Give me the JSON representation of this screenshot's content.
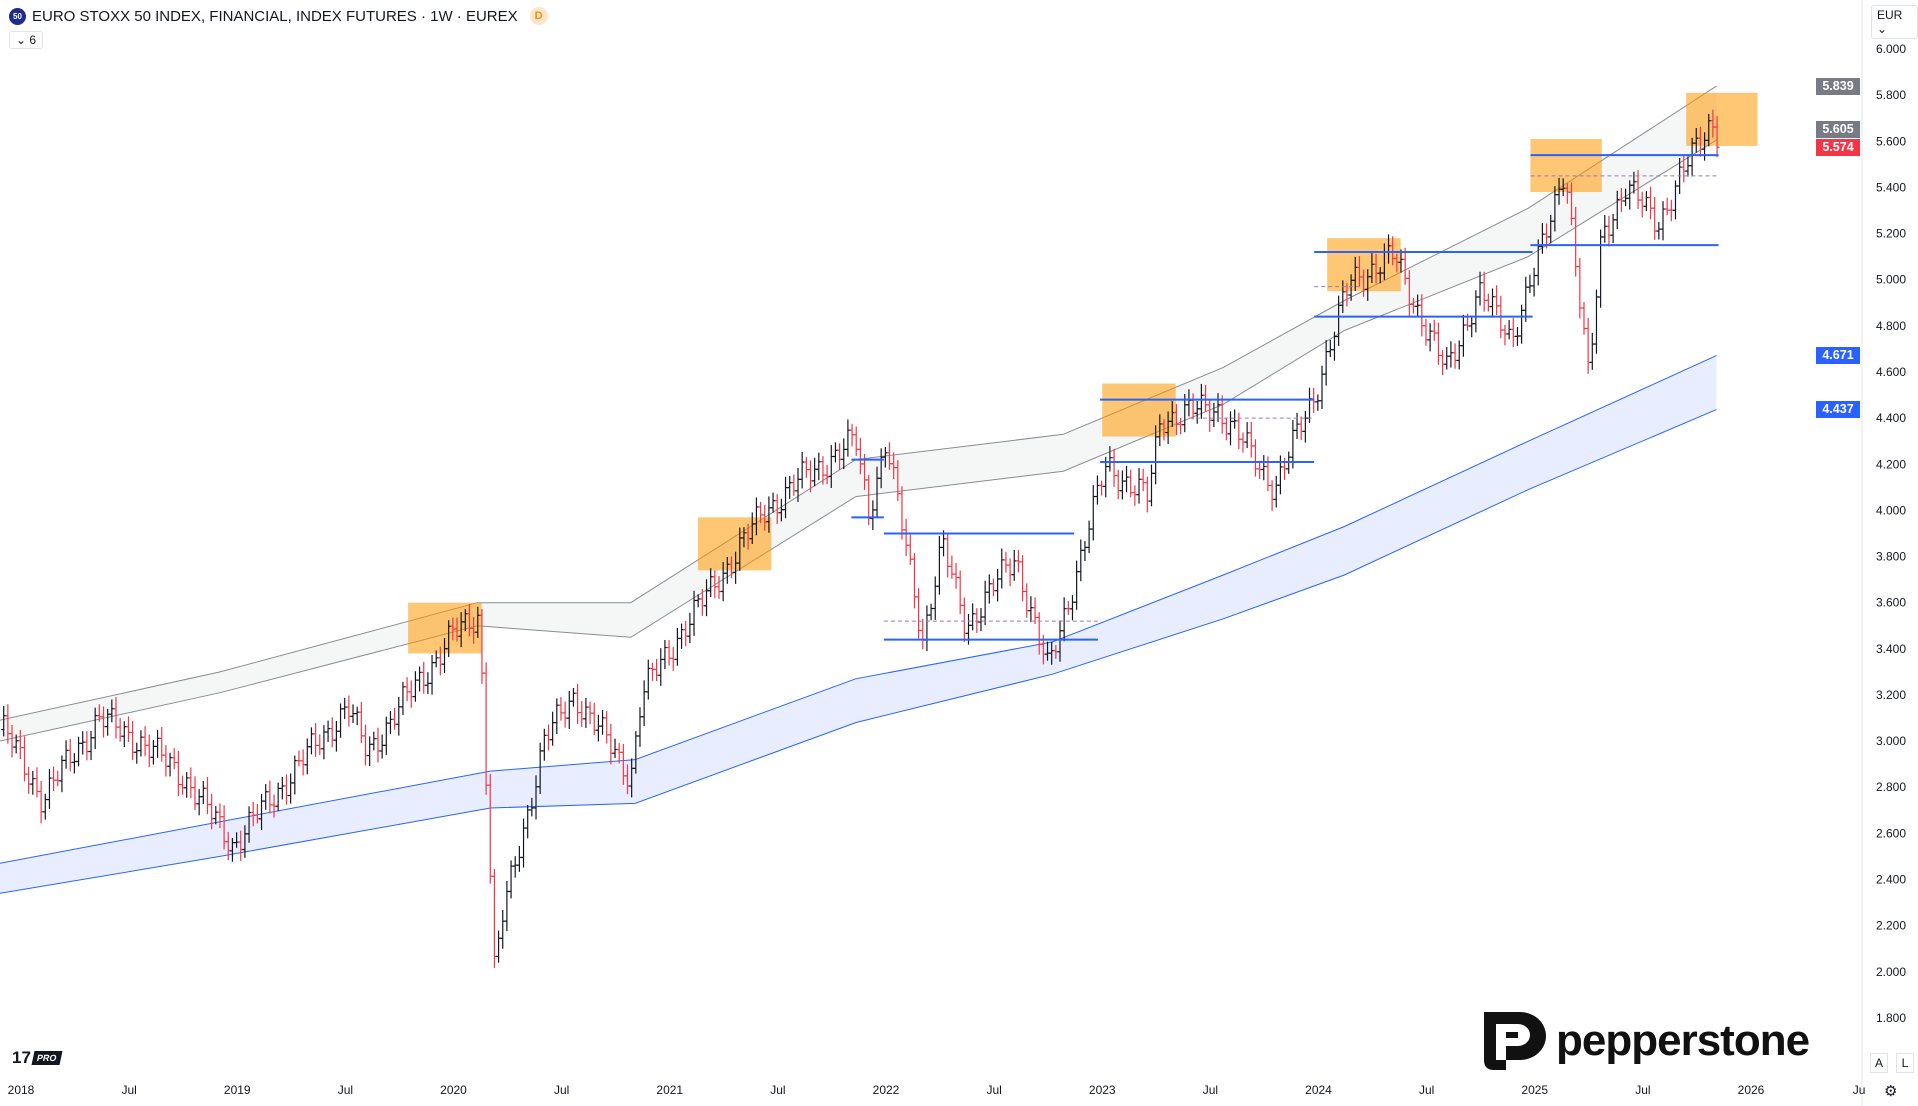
{
  "header": {
    "symbol_badge": "50",
    "title": "EURO STOXX 50 INDEX, FINANCIAL, INDEX FUTURES · 1W · EUREX",
    "delayed_badge": "D",
    "indicators_count": "6",
    "currency": "EUR"
  },
  "price_tags": [
    {
      "value": "5.839",
      "price": 5.839,
      "color": "#787b86"
    },
    {
      "value": "5.605",
      "price": 5.605,
      "color": "#787b86"
    },
    {
      "value": "5.574",
      "price": 5.574,
      "color": "#f23645"
    },
    {
      "value": "4.671",
      "price": 4.671,
      "color": "#2962ff"
    },
    {
      "value": "4.437",
      "price": 4.437,
      "color": "#2962ff"
    }
  ],
  "footer": {
    "tv_pro": "PRO",
    "brand": "pepperstone",
    "auto_btn": "A",
    "log_btn": "L"
  },
  "chart_data": {
    "type": "ohlc",
    "interval": "weekly",
    "yticks": [
      "6.000",
      "5.800",
      "5.600",
      "5.400",
      "5.200",
      "5.000",
      "4.800",
      "4.600",
      "4.400",
      "4.200",
      "4.000",
      "3.800",
      "3.600",
      "3.400",
      "3.200",
      "3.000",
      "2.800",
      "2.600",
      "2.400",
      "2.200",
      "2.000",
      "1.800"
    ],
    "ylim": [
      1.8,
      6.0
    ],
    "xlim": [
      2017.9,
      2026.65
    ],
    "xticks": [
      {
        "t": 2018,
        "label": "2018"
      },
      {
        "t": 2018.5,
        "label": "Jul"
      },
      {
        "t": 2019,
        "label": "2019"
      },
      {
        "t": 2019.5,
        "label": "Jul"
      },
      {
        "t": 2020,
        "label": "2020"
      },
      {
        "t": 2020.5,
        "label": "Jul"
      },
      {
        "t": 2021,
        "label": "2021"
      },
      {
        "t": 2021.5,
        "label": "Jul"
      },
      {
        "t": 2022,
        "label": "2022"
      },
      {
        "t": 2022.5,
        "label": "Jul"
      },
      {
        "t": 2023,
        "label": "2023"
      },
      {
        "t": 2023.5,
        "label": "Jul"
      },
      {
        "t": 2024,
        "label": "2024"
      },
      {
        "t": 2024.5,
        "label": "Jul"
      },
      {
        "t": 2025,
        "label": "2025"
      },
      {
        "t": 2025.5,
        "label": "Jul"
      },
      {
        "t": 2026,
        "label": "2026"
      },
      {
        "t": 2026.5,
        "label": "Ju"
      }
    ],
    "price_path": [
      [
        2017.92,
        3.05
      ],
      [
        2018.1,
        2.75
      ],
      [
        2018.36,
        3.1
      ],
      [
        2018.55,
        3.0
      ],
      [
        2018.75,
        2.85
      ],
      [
        2018.98,
        2.55
      ],
      [
        2019.51,
        3.15
      ],
      [
        2019.6,
        2.95
      ],
      [
        2019.99,
        3.45
      ],
      [
        2020.12,
        3.55
      ],
      [
        2020.19,
        2.0
      ],
      [
        2020.23,
        2.25
      ],
      [
        2020.42,
        3.0
      ],
      [
        2020.56,
        3.2
      ],
      [
        2020.82,
        2.85
      ],
      [
        2020.87,
        3.2
      ],
      [
        2021.07,
        3.5
      ],
      [
        2021.15,
        3.6
      ],
      [
        2021.44,
        4.0
      ],
      [
        2021.63,
        4.15
      ],
      [
        2021.86,
        4.3
      ],
      [
        2021.92,
        4.0
      ],
      [
        2022.0,
        4.3
      ],
      [
        2022.17,
        3.45
      ],
      [
        2022.26,
        3.85
      ],
      [
        2022.37,
        3.5
      ],
      [
        2022.6,
        3.8
      ],
      [
        2022.75,
        3.3
      ],
      [
        2022.93,
        3.9
      ],
      [
        2023.02,
        4.2
      ],
      [
        2023.21,
        4.05
      ],
      [
        2023.27,
        4.4
      ],
      [
        2023.53,
        4.45
      ],
      [
        2023.8,
        4.1
      ],
      [
        2023.98,
        4.5
      ],
      [
        2024.15,
        5.0
      ],
      [
        2024.35,
        5.1
      ],
      [
        2024.59,
        4.6
      ],
      [
        2024.74,
        4.95
      ],
      [
        2024.89,
        4.75
      ],
      [
        2025.04,
        5.15
      ],
      [
        2025.14,
        5.5
      ],
      [
        2025.25,
        4.55
      ],
      [
        2025.31,
        5.2
      ],
      [
        2025.42,
        5.4
      ],
      [
        2025.57,
        5.25
      ],
      [
        2025.68,
        5.45
      ],
      [
        2025.82,
        5.7
      ],
      [
        2025.85,
        5.574
      ]
    ],
    "channel_grey": {
      "upper": [
        [
          2017.9,
          3.09
        ],
        [
          2018.92,
          3.3
        ],
        [
          2020.11,
          3.6
        ],
        [
          2020.82,
          3.6
        ],
        [
          2021.86,
          4.22
        ],
        [
          2022.82,
          4.33
        ],
        [
          2023.56,
          4.62
        ],
        [
          2024.12,
          4.91
        ],
        [
          2024.97,
          5.31
        ],
        [
          2025.84,
          5.839
        ]
      ],
      "lower": [
        [
          2017.9,
          3.0
        ],
        [
          2018.92,
          3.21
        ],
        [
          2020.11,
          3.5
        ],
        [
          2020.82,
          3.45
        ],
        [
          2021.86,
          4.06
        ],
        [
          2022.82,
          4.17
        ],
        [
          2023.56,
          4.46
        ],
        [
          2024.12,
          4.78
        ],
        [
          2024.97,
          5.1
        ],
        [
          2025.84,
          5.605
        ]
      ]
    },
    "channel_blue": {
      "upper": [
        [
          2017.9,
          2.47
        ],
        [
          2018.92,
          2.65
        ],
        [
          2020.17,
          2.87
        ],
        [
          2020.84,
          2.92
        ],
        [
          2021.86,
          3.27
        ],
        [
          2022.77,
          3.43
        ],
        [
          2023.56,
          3.72
        ],
        [
          2024.12,
          3.93
        ],
        [
          2024.97,
          4.3
        ],
        [
          2025.84,
          4.671
        ]
      ],
      "lower": [
        [
          2017.9,
          2.34
        ],
        [
          2018.92,
          2.5
        ],
        [
          2020.17,
          2.71
        ],
        [
          2020.84,
          2.73
        ],
        [
          2021.86,
          3.08
        ],
        [
          2022.77,
          3.29
        ],
        [
          2023.56,
          3.53
        ],
        [
          2024.12,
          3.72
        ],
        [
          2024.97,
          4.09
        ],
        [
          2025.84,
          4.437
        ]
      ]
    },
    "highlight_boxes": [
      [
        2019.79,
        2020.13,
        3.38,
        3.6
      ],
      [
        2021.13,
        2021.47,
        3.74,
        3.97
      ],
      [
        2023.0,
        2023.34,
        4.32,
        4.55
      ],
      [
        2024.04,
        2024.38,
        4.95,
        5.18
      ],
      [
        2024.98,
        2025.31,
        5.38,
        5.61
      ],
      [
        2025.7,
        2026.03,
        5.58,
        5.81
      ]
    ],
    "support_resistance": [
      [
        2021.99,
        2022.98,
        3.44
      ],
      [
        2021.99,
        2022.87,
        3.9
      ],
      [
        2021.84,
        2021.99,
        4.22
      ],
      [
        2021.84,
        2021.99,
        3.97
      ],
      [
        2022.99,
        2023.98,
        4.48
      ],
      [
        2022.99,
        2023.98,
        4.21
      ],
      [
        2023.98,
        2024.99,
        5.12
      ],
      [
        2023.98,
        2024.99,
        4.84
      ],
      [
        2024.98,
        2025.85,
        5.54
      ],
      [
        2024.98,
        2025.85,
        5.15
      ]
    ],
    "midlines": [
      [
        2021.99,
        2022.98,
        3.52
      ],
      [
        2023.4,
        2023.98,
        4.4
      ],
      [
        2023.98,
        2024.2,
        4.97
      ],
      [
        2024.98,
        2025.85,
        5.45
      ]
    ]
  }
}
